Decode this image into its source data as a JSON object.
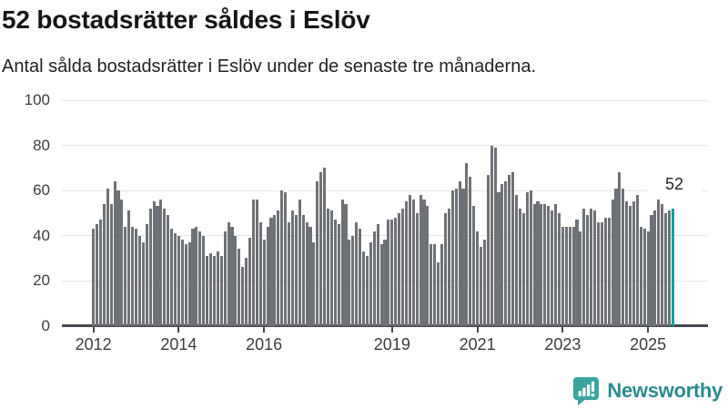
{
  "header": {
    "title": "52 bostadsrätter såldes i Eslöv",
    "subtitle": "Antal sålda bostadsrätter i Eslöv under de senaste tre månaderna."
  },
  "chart_data": {
    "type": "bar",
    "title": "52 bostadsrätter såldes i Eslöv",
    "subtitle": "Antal sålda bostadsrätter i Eslöv under de senaste tre månaderna.",
    "frequency": "monthly",
    "start_month": "2012-01",
    "end_month": "2025-08",
    "ylabel": "",
    "xlabel": "",
    "ylim": [
      0,
      100
    ],
    "yticks": [
      0,
      20,
      40,
      60,
      80,
      100
    ],
    "grid": true,
    "legend": false,
    "xticks": [
      {
        "label": "2012",
        "month_index": 0
      },
      {
        "label": "2014",
        "month_index": 24
      },
      {
        "label": "2016",
        "month_index": 48
      },
      {
        "label": "2019",
        "month_index": 84
      },
      {
        "label": "2021",
        "month_index": 108
      },
      {
        "label": "2023",
        "month_index": 132
      },
      {
        "label": "2025",
        "month_index": 156
      }
    ],
    "values": [
      43,
      45,
      47,
      54,
      61,
      54,
      64,
      60,
      56,
      44,
      51,
      44,
      43,
      40,
      37,
      45,
      52,
      55,
      53,
      56,
      52,
      49,
      43,
      41,
      40,
      38,
      36,
      37,
      43,
      44,
      42,
      40,
      31,
      32,
      31,
      33,
      31,
      42,
      46,
      44,
      40,
      34,
      26,
      30,
      39,
      56,
      56,
      46,
      38,
      44,
      48,
      49,
      51,
      60,
      59,
      46,
      51,
      49,
      56,
      49,
      46,
      44,
      37,
      64,
      68,
      70,
      52,
      51,
      47,
      45,
      56,
      54,
      38,
      40,
      46,
      43,
      33,
      31,
      37,
      42,
      45,
      36,
      38,
      47,
      47,
      48,
      50,
      52,
      55,
      58,
      56,
      50,
      58,
      56,
      53,
      36,
      36,
      28,
      36,
      50,
      52,
      60,
      61,
      64,
      61,
      72,
      66,
      53,
      42,
      35,
      38,
      67,
      80,
      79,
      59,
      63,
      64,
      67,
      68,
      58,
      52,
      50,
      59,
      60,
      54,
      55,
      54,
      54,
      53,
      51,
      54,
      50,
      44,
      44,
      44,
      44,
      47,
      42,
      52,
      49,
      52,
      51,
      46,
      46,
      48,
      48,
      56,
      61,
      68,
      61,
      55,
      53,
      55,
      58,
      44,
      43,
      42,
      49,
      51,
      56,
      54,
      50,
      51,
      52
    ],
    "highlight_last_bar": true,
    "last_bar_label": "52",
    "colors": {
      "bar": "#6e7175",
      "highlight": "#0a9f9f",
      "gridline": "#e4e4e4",
      "axis": "#47474c"
    }
  },
  "annotation": {
    "last_value": "52"
  },
  "footer": {
    "brand": "Newsworthy",
    "logo_icon": "newsworthy-speech-bubble-chart-icon"
  }
}
